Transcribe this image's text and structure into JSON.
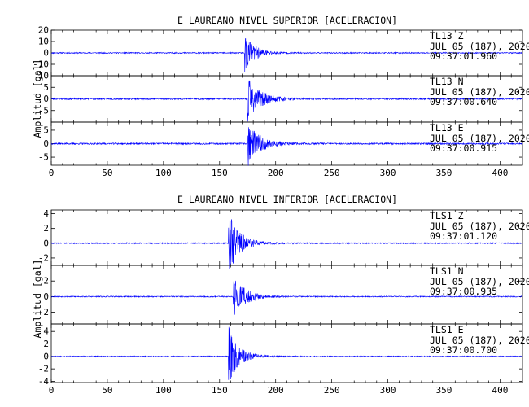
{
  "chart_data": [
    {
      "type": "line",
      "title": "E LAUREANO NIVEL SUPERIOR [ACELERACION]",
      "ylabel": "Amplitud [gal]",
      "xlabel": "",
      "xlim": [
        0,
        420
      ],
      "xticks": [
        0,
        50,
        100,
        150,
        200,
        250,
        300,
        350,
        400
      ],
      "series_color": "#0000ff",
      "series": [
        {
          "station": "TL13",
          "component": "Z",
          "date": "JUL 05 (187), 2020",
          "time": "09:37:01.960",
          "ylim": [
            -20,
            20
          ],
          "yticks": [
            -20,
            -10,
            0,
            10,
            20
          ],
          "ytick_labels": [
            "",
            "-10",
            "0",
            "10",
            "20"
          ],
          "onset": 172,
          "peak": 18,
          "decay": 9,
          "noise": 0.5,
          "seed": 11
        },
        {
          "station": "TL13",
          "component": "N",
          "date": "JUL 05 (187), 2020",
          "time": "09:37:00.640",
          "ylim": [
            -10,
            10
          ],
          "yticks": [
            -10,
            -5,
            0,
            5,
            10
          ],
          "ytick_labels": [
            "",
            "-5",
            "0",
            "5",
            "10"
          ],
          "onset": 175,
          "peak": 9,
          "decay": 11,
          "noise": 0.35,
          "seed": 23
        },
        {
          "station": "TL13",
          "component": "E",
          "date": "JUL 05 (187), 2020",
          "time": "09:37:00.915",
          "ylim": [
            -8,
            8
          ],
          "yticks": [
            -5,
            0,
            5
          ],
          "ytick_labels": [
            "-5",
            "0",
            "5"
          ],
          "onset": 175,
          "peak": 8,
          "decay": 11,
          "noise": 0.3,
          "seed": 37
        }
      ]
    },
    {
      "type": "line",
      "title": "E LAUREANO NIVEL INFERIOR [ACELERACION]",
      "ylabel": "Amplitud [gal]",
      "xlabel": "",
      "xlim": [
        0,
        420
      ],
      "xticks": [
        0,
        50,
        100,
        150,
        200,
        250,
        300,
        350,
        400
      ],
      "series_color": "#0000ff",
      "series": [
        {
          "station": "TLS1",
          "component": "Z",
          "date": "JUL 05 (187), 2020",
          "time": "09:37:01.120",
          "ylim": [
            -3,
            4.5
          ],
          "yticks": [
            -2,
            0,
            2,
            4
          ],
          "ytick_labels": [
            "-2",
            "0",
            "2",
            "4"
          ],
          "onset": 158,
          "peak": 4.2,
          "decay": 10,
          "noise": 0.08,
          "seed": 41
        },
        {
          "station": "TLS1",
          "component": "N",
          "date": "JUL 05 (187), 2020",
          "time": "09:37:00.935",
          "ylim": [
            -3.5,
            4
          ],
          "yticks": [
            -2,
            0,
            2
          ],
          "ytick_labels": [
            "-2",
            "0",
            "2"
          ],
          "onset": 162,
          "peak": 3,
          "decay": 10,
          "noise": 0.07,
          "seed": 53
        },
        {
          "station": "TLS1",
          "component": "E",
          "date": "JUL 05 (187), 2020",
          "time": "09:37:00.700",
          "ylim": [
            -4.2,
            5.2
          ],
          "yticks": [
            -4,
            -2,
            0,
            2,
            4
          ],
          "ytick_labels": [
            "-4",
            "-2",
            "0",
            "2",
            "4"
          ],
          "onset": 158,
          "peak": 4.5,
          "decay": 9,
          "noise": 0.08,
          "seed": 67
        }
      ]
    }
  ]
}
